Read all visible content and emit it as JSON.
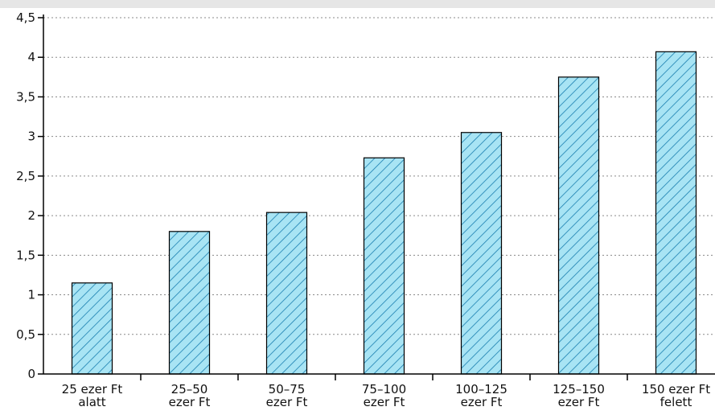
{
  "chart_data": {
    "type": "bar",
    "categories": [
      [
        "25 ezer Ft",
        "alatt"
      ],
      [
        "25–50",
        "ezer Ft"
      ],
      [
        "50–75",
        "ezer Ft"
      ],
      [
        "75–100",
        "ezer Ft"
      ],
      [
        "100–125",
        "ezer Ft"
      ],
      [
        "125–150",
        "ezer Ft"
      ],
      [
        "150 ezer Ft",
        "felett"
      ]
    ],
    "values": [
      1.15,
      1.8,
      2.04,
      2.73,
      3.05,
      3.75,
      4.07
    ],
    "yticks": [
      "0",
      "0,5",
      "1",
      "1,5",
      "2",
      "2,5",
      "3",
      "3,5",
      "4",
      "4,5"
    ],
    "ylim": [
      0,
      4.5
    ],
    "title": "",
    "xlabel": "",
    "ylabel": "",
    "grid": true,
    "bar_color": "#a8e4f4",
    "hatch_color": "#1a7fb0",
    "background": "#ffffff",
    "page_background": "#e6e6e6"
  }
}
